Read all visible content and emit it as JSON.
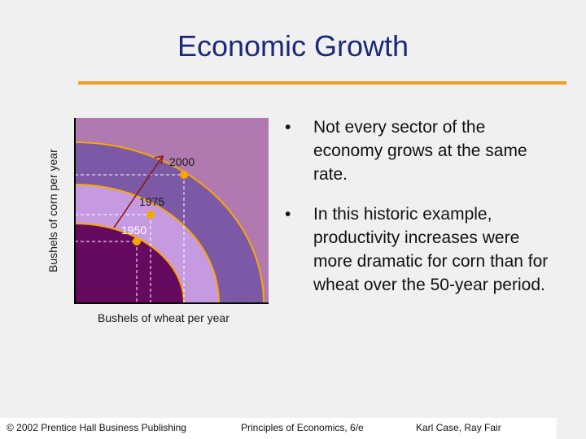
{
  "slide": {
    "title": "Economic Growth"
  },
  "diagram": {
    "y_axis_label": "Bushels of corn per year",
    "x_axis_label": "Bushels of wheat per year",
    "curve_labels": [
      "2000",
      "1975",
      "1950"
    ],
    "colors": {
      "background": "#b07ab0",
      "band_2000": "#7c59a6",
      "band_1975": "#c69ae0",
      "band_1950": "#660a60",
      "curve_line": "#f7a800",
      "points": "#f7a800",
      "arrow": "#8a1a1a"
    }
  },
  "bullets": [
    "Not every sector of the economy grows at the same rate.",
    "In this historic example, productivity increases were more dramatic for corn than for wheat over the 50-year period."
  ],
  "bullet_symbol": "•",
  "footer": {
    "copyright": "© 2002 Prentice Hall Business Publishing",
    "book": "Principles of Economics, 6/e",
    "authors": "Karl Case, Ray Fair"
  }
}
